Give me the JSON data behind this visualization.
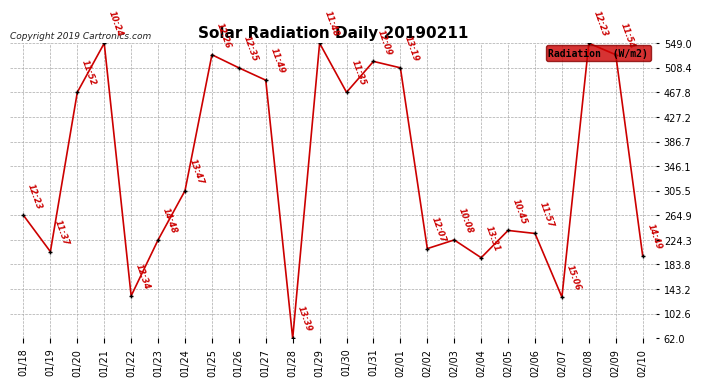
{
  "title": "Solar Radiation Daily 20190211",
  "copyright": "Copyright 2019 Cartronics.com",
  "legend_label": "Radiation  (W/m2)",
  "background_color": "#ffffff",
  "grid_color": "#aaaaaa",
  "line_color": "#cc0000",
  "point_color": "#000000",
  "label_color": "#cc0000",
  "dates": [
    "01/18",
    "01/19",
    "01/20",
    "01/21",
    "01/22",
    "01/23",
    "01/24",
    "01/25",
    "01/26",
    "01/27",
    "01/28",
    "01/29",
    "01/30",
    "01/31",
    "02/01",
    "02/02",
    "02/03",
    "02/04",
    "02/05",
    "02/06",
    "02/07",
    "02/08",
    "02/09",
    "02/10"
  ],
  "values": [
    264.9,
    205.0,
    468.0,
    549.0,
    132.0,
    224.3,
    305.5,
    530.0,
    508.4,
    488.0,
    62.0,
    549.0,
    468.0,
    519.0,
    508.4,
    210.0,
    224.3,
    195.0,
    240.0,
    235.0,
    130.0,
    549.0,
    530.0,
    198.0
  ],
  "time_labels": [
    "12:23",
    "11:37",
    "11:52",
    "10:24",
    "12:34",
    "14:48",
    "13:47",
    "12:26",
    "12:35",
    "11:49",
    "13:39",
    "11:48",
    "11:35",
    "12:09",
    "13:19",
    "12:07",
    "10:08",
    "13:31",
    "10:45",
    "11:57",
    "15:06",
    "12:23",
    "11:54",
    "14:49"
  ],
  "ylim_min": 62.0,
  "ylim_max": 549.0,
  "yticks": [
    62.0,
    102.6,
    143.2,
    183.8,
    224.3,
    264.9,
    305.5,
    346.1,
    386.7,
    427.2,
    467.8,
    508.4,
    549.0
  ],
  "title_fontsize": 11,
  "tick_fontsize": 7,
  "label_fontsize": 6,
  "copyright_fontsize": 6.5
}
